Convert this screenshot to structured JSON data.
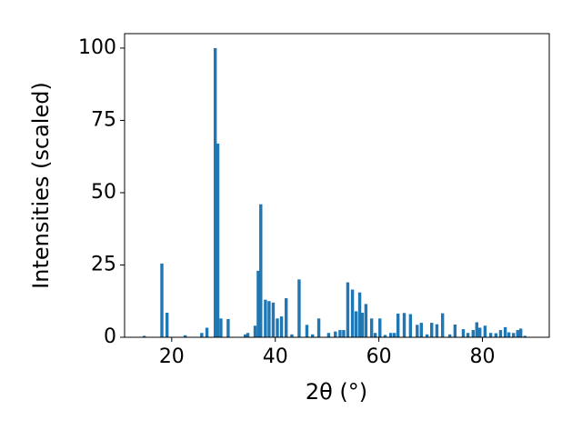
{
  "chart_data": {
    "type": "bar",
    "xlabel": "2θ (°)",
    "ylabel": "Intensities (scaled)",
    "color": "#1f77b4",
    "x": [
      14.7,
      18.1,
      19.1,
      22.6,
      25.8,
      26.8,
      28.4,
      28.9,
      29.5,
      30.9,
      34.2,
      34.7,
      36.1,
      36.7,
      37.2,
      38.1,
      38.8,
      39.6,
      40.4,
      41.2,
      42.1,
      43.2,
      44.6,
      46.1,
      47.2,
      48.4,
      50.3,
      51.6,
      52.5,
      53.2,
      54.0,
      54.9,
      55.6,
      56.3,
      56.8,
      57.5,
      58.6,
      59.3,
      60.2,
      61.2,
      62.3,
      63.0,
      63.7,
      64.9,
      66.1,
      67.4,
      68.2,
      69.3,
      70.2,
      71.2,
      72.3,
      73.7,
      74.7,
      76.3,
      77.2,
      78.2,
      78.9,
      79.5,
      80.5,
      81.6,
      82.6,
      83.5,
      84.4,
      85.1,
      86.0,
      86.8,
      87.4,
      88.2
    ],
    "values": [
      0.5,
      25.5,
      8.5,
      0.7,
      1.5,
      3.3,
      100,
      67,
      6.5,
      6.3,
      1,
      1.5,
      4,
      23,
      46,
      13,
      12.5,
      12,
      6.5,
      7.2,
      13.5,
      1,
      20,
      4.3,
      1,
      6.5,
      1.5,
      2,
      2.5,
      2.5,
      19,
      16.5,
      9,
      15.5,
      8.5,
      11.5,
      6.5,
      1.5,
      6.5,
      0.8,
      1.5,
      1.5,
      8.2,
      8.4,
      8,
      4.3,
      5,
      1,
      5,
      4.5,
      8.3,
      1,
      4.4,
      2.8,
      1.5,
      2.5,
      5.2,
      3.3,
      4,
      1.5,
      1.4,
      2.5,
      3.5,
      1.7,
      1.5,
      2.5,
      3,
      0.5
    ],
    "xlim": [
      10.9,
      92.9
    ],
    "ylim": [
      0,
      105
    ],
    "xticks": [
      20,
      40,
      60,
      80
    ],
    "yticks": [
      0,
      25,
      50,
      75,
      100
    ]
  }
}
